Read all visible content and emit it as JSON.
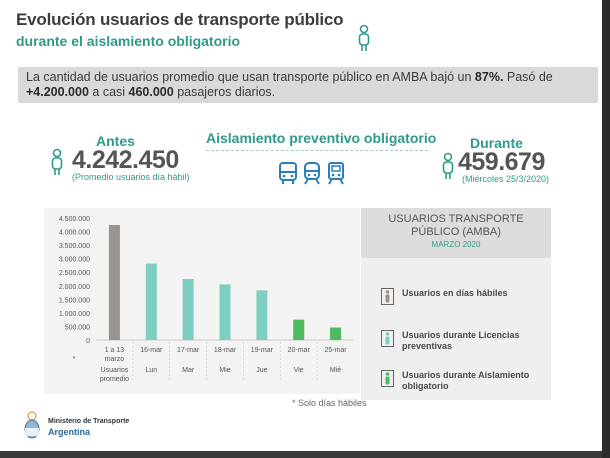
{
  "header": {
    "title": "Evolución usuarios de transporte público",
    "subtitle": "durante el aislamiento obligatorio"
  },
  "summary": {
    "text_1": "La cantidad de usuarios promedio que usan transporte público en AMBA bajó un ",
    "pct": "87%.",
    "text_2": " Pasó de ",
    "from": "+4.200.000",
    "text_3": " a casi ",
    "to": "460.000",
    "text_4": " pasajeros diarios."
  },
  "antes": {
    "label": "Antes",
    "value": "4.242.450",
    "note": "(Promedio usuarios día hábil)"
  },
  "aislamiento": {
    "label": "Aislamiento preventivo obligatorio"
  },
  "durante": {
    "label": "Durante",
    "value": "459.679",
    "note": "(Miércoles 25/3/2020)"
  },
  "panel": {
    "title_line1": "USUARIOS TRANSPORTE",
    "title_line2": "PÚBLICO (AMBA)",
    "date": "MARZO 2020"
  },
  "legend": [
    {
      "label": "Usuarios en días hábiles",
      "color": "#9a928d"
    },
    {
      "label": "Usuarios durante Licencias preventivas",
      "color": "#7ecdc1"
    },
    {
      "label": "Usuarios durante Aislamiento obligatorio",
      "color": "#4dbb5f"
    }
  ],
  "footnote": "* Solo días hábiles",
  "footer": {
    "ministry_line1": "Ministerio de Transporte",
    "ministry_line2": "Argentina"
  },
  "colors": {
    "teal": "#2f9a8a",
    "gray_bar": "#9a928d",
    "teal_bar": "#7ecdc1",
    "green_bar": "#4dbb5f"
  },
  "chart_data": {
    "type": "bar",
    "categories": [
      "1 a 13 marzo",
      "16-mar",
      "17-mar",
      "18-mar",
      "19-mar",
      "20-mar",
      "25-mar"
    ],
    "category_sub": [
      "Usuarios promedio",
      "Lun",
      "Mar",
      "Mie",
      "Jue",
      "Vie",
      "Mié"
    ],
    "category_note": [
      "*",
      "",
      "",
      "",
      "",
      "",
      ""
    ],
    "values": [
      4242450,
      2820000,
      2250000,
      2050000,
      1830000,
      750000,
      459679
    ],
    "bar_groups": [
      "gray",
      "teal",
      "teal",
      "teal",
      "teal",
      "green",
      "green"
    ],
    "ylim": [
      0,
      4500000
    ],
    "yticks": [
      "4.500.000",
      "4.000.000",
      "3.500.000",
      "3.000.000",
      "2.500.000",
      "2.000.000",
      "1.500.000",
      "1.000.000",
      "500.000",
      "0"
    ],
    "ytick_values": [
      4500000,
      4000000,
      3500000,
      3000000,
      2500000,
      2000000,
      1500000,
      1000000,
      500000,
      0
    ],
    "grid": false
  }
}
